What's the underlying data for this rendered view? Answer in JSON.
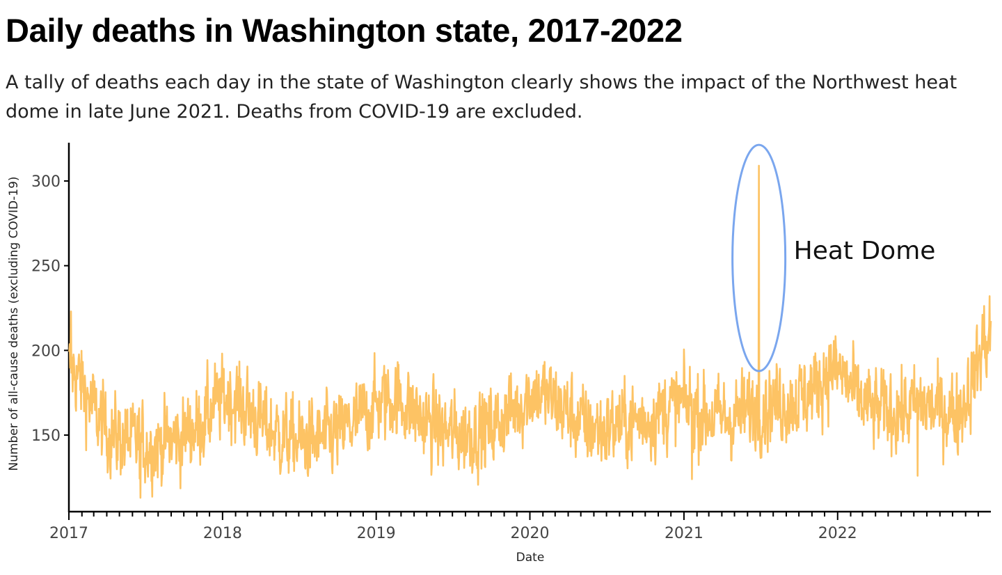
{
  "header": {
    "title": "Daily deaths in Washington state, 2017-2022",
    "subtitle": "A tally of deaths each day in the state of Washington clearly shows the impact of the Northwest heat dome in late June 2021. Deaths from COVID-19 are excluded."
  },
  "chart_data": {
    "type": "line",
    "title": "Daily deaths in Washington state, 2017-2022",
    "xlabel": "Date",
    "ylabel": "Number of all-cause deaths (excluding COVID-19)",
    "x_range": [
      "2017-01-01",
      "2022-12-31"
    ],
    "ylim": [
      110,
      320
    ],
    "y_ticks": [
      150,
      200,
      250,
      300
    ],
    "x_ticks": [
      "2017",
      "2018",
      "2019",
      "2020",
      "2021",
      "2022"
    ],
    "grid": false,
    "line_color": "#FDC364",
    "series": [
      {
        "name": "",
        "resolution": "daily (monthly means listed; daily detail shown as noise around these)",
        "monthly_mean": [
          {
            "month": "2017-01",
            "value": 188
          },
          {
            "month": "2017-02",
            "value": 172
          },
          {
            "month": "2017-03",
            "value": 158
          },
          {
            "month": "2017-04",
            "value": 150
          },
          {
            "month": "2017-05",
            "value": 147
          },
          {
            "month": "2017-06",
            "value": 145
          },
          {
            "month": "2017-07",
            "value": 144
          },
          {
            "month": "2017-08",
            "value": 146
          },
          {
            "month": "2017-09",
            "value": 147
          },
          {
            "month": "2017-10",
            "value": 152
          },
          {
            "month": "2017-11",
            "value": 158
          },
          {
            "month": "2017-12",
            "value": 168
          },
          {
            "month": "2018-01",
            "value": 173
          },
          {
            "month": "2018-02",
            "value": 168
          },
          {
            "month": "2018-03",
            "value": 162
          },
          {
            "month": "2018-04",
            "value": 155
          },
          {
            "month": "2018-05",
            "value": 150
          },
          {
            "month": "2018-06",
            "value": 147
          },
          {
            "month": "2018-07",
            "value": 146
          },
          {
            "month": "2018-08",
            "value": 147
          },
          {
            "month": "2018-09",
            "value": 149
          },
          {
            "month": "2018-10",
            "value": 153
          },
          {
            "month": "2018-11",
            "value": 158
          },
          {
            "month": "2018-12",
            "value": 165
          },
          {
            "month": "2019-01",
            "value": 170
          },
          {
            "month": "2019-02",
            "value": 172
          },
          {
            "month": "2019-03",
            "value": 168
          },
          {
            "month": "2019-04",
            "value": 160
          },
          {
            "month": "2019-05",
            "value": 155
          },
          {
            "month": "2019-06",
            "value": 152
          },
          {
            "month": "2019-07",
            "value": 150
          },
          {
            "month": "2019-08",
            "value": 152
          },
          {
            "month": "2019-09",
            "value": 153
          },
          {
            "month": "2019-10",
            "value": 157
          },
          {
            "month": "2019-11",
            "value": 163
          },
          {
            "month": "2019-12",
            "value": 170
          },
          {
            "month": "2020-01",
            "value": 176
          },
          {
            "month": "2020-02",
            "value": 172
          },
          {
            "month": "2020-03",
            "value": 167
          },
          {
            "month": "2020-04",
            "value": 160
          },
          {
            "month": "2020-05",
            "value": 155
          },
          {
            "month": "2020-06",
            "value": 153
          },
          {
            "month": "2020-07",
            "value": 155
          },
          {
            "month": "2020-08",
            "value": 157
          },
          {
            "month": "2020-09",
            "value": 158
          },
          {
            "month": "2020-10",
            "value": 161
          },
          {
            "month": "2020-11",
            "value": 165
          },
          {
            "month": "2020-12",
            "value": 168
          },
          {
            "month": "2021-01",
            "value": 168
          },
          {
            "month": "2021-02",
            "value": 163
          },
          {
            "month": "2021-03",
            "value": 160
          },
          {
            "month": "2021-04",
            "value": 160
          },
          {
            "month": "2021-05",
            "value": 162
          },
          {
            "month": "2021-06",
            "value": 165
          },
          {
            "month": "2021-07",
            "value": 167
          },
          {
            "month": "2021-08",
            "value": 170
          },
          {
            "month": "2021-09",
            "value": 170
          },
          {
            "month": "2021-10",
            "value": 173
          },
          {
            "month": "2021-11",
            "value": 180
          },
          {
            "month": "2021-12",
            "value": 190
          },
          {
            "month": "2022-01",
            "value": 185
          },
          {
            "month": "2022-02",
            "value": 172
          },
          {
            "month": "2022-03",
            "value": 166
          },
          {
            "month": "2022-04",
            "value": 164
          },
          {
            "month": "2022-05",
            "value": 165
          },
          {
            "month": "2022-06",
            "value": 164
          },
          {
            "month": "2022-07",
            "value": 168
          },
          {
            "month": "2022-08",
            "value": 166
          },
          {
            "month": "2022-09",
            "value": 164
          },
          {
            "month": "2022-10",
            "value": 163
          },
          {
            "month": "2022-11",
            "value": 180
          },
          {
            "month": "2022-12",
            "value": 205
          }
        ],
        "notable_points": [
          {
            "date": "2017-01-06",
            "value": 223
          },
          {
            "date": "2017-06-20",
            "value": 113
          },
          {
            "date": "2021-01-20",
            "value": 124
          },
          {
            "date": "2021-06-28",
            "value": 309
          },
          {
            "date": "2022-07-10",
            "value": 126
          },
          {
            "date": "2022-12-28",
            "value": 232
          }
        ]
      }
    ],
    "annotations": [
      {
        "text": "Heat Dome",
        "date": "2021-06-28",
        "value": 309,
        "marker": "ellipse",
        "marker_color": "#7AA6EE"
      }
    ]
  }
}
